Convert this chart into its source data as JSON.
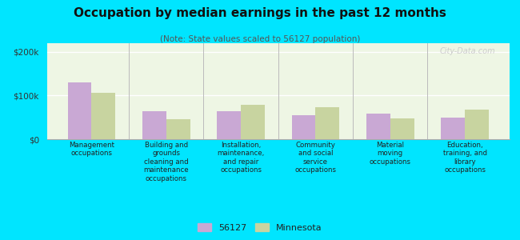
{
  "title": "Occupation by median earnings in the past 12 months",
  "subtitle": "(Note: State values scaled to 56127 population)",
  "categories": [
    "Management\noccupations",
    "Building and\ngrounds\ncleaning and\nmaintenance\noccupations",
    "Installation,\nmaintenance,\nand repair\noccupations",
    "Community\nand social\nservice\noccupations",
    "Material\nmoving\noccupations",
    "Education,\ntraining, and\nlibrary\noccupations"
  ],
  "values_56127": [
    130000,
    65000,
    65000,
    55000,
    58000,
    50000
  ],
  "values_minnesota": [
    107000,
    45000,
    78000,
    73000,
    47000,
    68000
  ],
  "color_56127": "#c9a8d4",
  "color_minnesota": "#c8d4a0",
  "bar_width": 0.32,
  "ylim": [
    0,
    220000
  ],
  "yticks": [
    0,
    100000,
    200000
  ],
  "ytick_labels": [
    "$0",
    "$100k",
    "$200k"
  ],
  "background_color": "#00e5ff",
  "legend_label_56127": "56127",
  "legend_label_minnesota": "Minnesota",
  "watermark": "City-Data.com"
}
